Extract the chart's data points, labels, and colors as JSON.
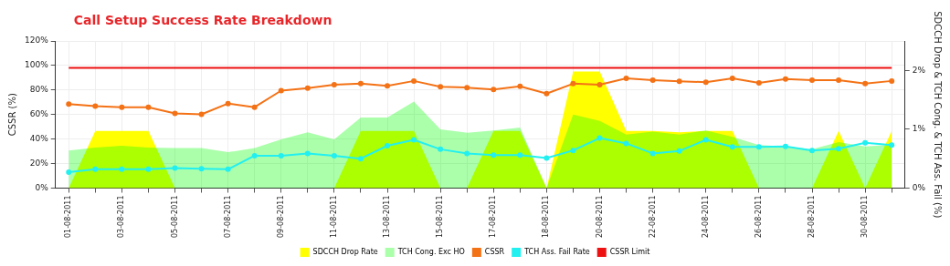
{
  "chart_data": {
    "type": "line",
    "title": "Call Setup Success Rate Breakdown",
    "ylabel": "CSSR (%)",
    "y2label": "SDCCH Drop & TCH Cong. & TCH Ass. Fail (%)",
    "categories": [
      "01-08-2011",
      null,
      "03-08-2011",
      null,
      "05-08-2011",
      null,
      "07-08-2011",
      null,
      "09-08-2011",
      null,
      "11-08-2011",
      null,
      "13-08-2011",
      null,
      "15-08-2011",
      null,
      "17-08-2011",
      null,
      "18-08-2011",
      null,
      "20-08-2011",
      null,
      "22-08-2011",
      null,
      "24-08-2011",
      null,
      "26-08-2011",
      null,
      "28-08-2011",
      null,
      "30-08-2011",
      null
    ],
    "ylim": [
      0,
      120
    ],
    "yticks": [
      {
        "value": 0,
        "label": "0%"
      },
      {
        "value": 20,
        "label": "20%"
      },
      {
        "value": 40,
        "label": "40%"
      },
      {
        "value": 60,
        "label": "60%"
      },
      {
        "value": 80,
        "label": "80%"
      },
      {
        "value": 100,
        "label": "100%"
      },
      {
        "value": 120,
        "label": "120%"
      }
    ],
    "y2lim": [
      0,
      2.5
    ],
    "y2ticks": [
      {
        "value": 0,
        "label": "0%"
      },
      {
        "value": 1,
        "label": "1%"
      },
      {
        "value": 2,
        "label": "2%"
      }
    ],
    "grid": true,
    "legend": "bottom",
    "series": [
      {
        "name": "SDCCH Drop Rate",
        "type": "area",
        "axis": "y2",
        "color": "#ffff00",
        "values": [
          0,
          0.97,
          0.97,
          0.97,
          0,
          0,
          0,
          0,
          0,
          0,
          0,
          0.97,
          0.97,
          0.97,
          0,
          0,
          0.97,
          0.97,
          0,
          1.98,
          1.98,
          0.97,
          0.97,
          0.95,
          0.97,
          0.97,
          0,
          0,
          0,
          0.97,
          0,
          0.97
        ]
      },
      {
        "name": "TCH Cong. Exc HO",
        "type": "area",
        "axis": "y2",
        "color": "#00ff00",
        "values": [
          0.64,
          0.69,
          0.72,
          0.69,
          0.68,
          0.68,
          0.61,
          0.68,
          0.83,
          0.95,
          0.83,
          1.2,
          1.2,
          1.47,
          1.0,
          0.94,
          0.98,
          1.03,
          0,
          1.25,
          1.14,
          0.91,
          0.96,
          0.91,
          0.98,
          0.87,
          0.73,
          0.71,
          0.66,
          0.78,
          0.71,
          0.74
        ]
      },
      {
        "name": "CSSR",
        "type": "line",
        "color": "#f47216",
        "marker": "circle",
        "values": [
          68.5,
          66.8,
          66,
          66,
          60.9,
          60.2,
          69,
          66,
          79.5,
          81.5,
          84.4,
          85.2,
          83.4,
          87.4,
          82.7,
          82,
          80.5,
          83,
          77.1,
          85.2,
          84.4,
          89.5,
          88.1,
          87.1,
          86.4,
          89.6,
          85.9,
          88.9,
          88.1,
          88.1,
          85.2,
          87.4
        ]
      },
      {
        "name": "TCH Ass. Fail Rate",
        "type": "line",
        "axis": "y2",
        "color": "#22f0f0",
        "marker": "circle",
        "values": [
          0.27,
          0.32,
          0.32,
          0.32,
          0.34,
          0.33,
          0.32,
          0.55,
          0.55,
          0.59,
          0.55,
          0.5,
          0.72,
          0.82,
          0.66,
          0.59,
          0.56,
          0.56,
          0.51,
          0.64,
          0.85,
          0.76,
          0.59,
          0.63,
          0.82,
          0.7,
          0.7,
          0.71,
          0.64,
          0.67,
          0.77,
          0.73
        ]
      },
      {
        "name": "CSSR Limit",
        "type": "line",
        "color": "#ee1111",
        "marker": "none",
        "values": [
          98,
          98,
          98,
          98,
          98,
          98,
          98,
          98,
          98,
          98,
          98,
          98,
          98,
          98,
          98,
          98,
          98,
          98,
          98,
          98,
          98,
          98,
          98,
          98,
          98,
          98,
          98,
          98,
          98,
          98,
          98,
          98
        ]
      }
    ]
  }
}
